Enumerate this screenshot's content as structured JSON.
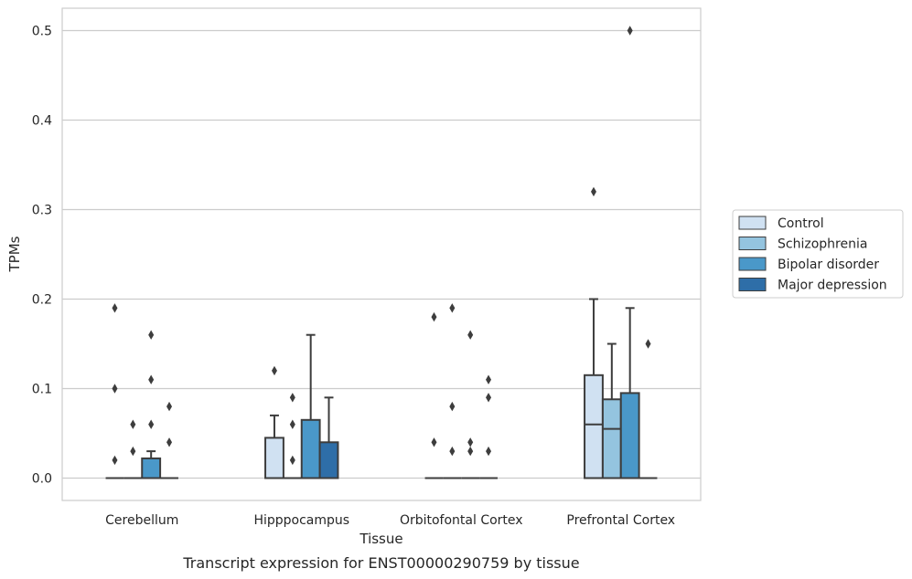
{
  "chart_data": {
    "type": "box",
    "caption": "Transcript expression for ENST00000290759 by tissue",
    "xlabel": "Tissue",
    "ylabel": "TPMs",
    "ylim": [
      -0.025,
      0.525
    ],
    "yticks": [
      0.0,
      0.1,
      0.2,
      0.3,
      0.4,
      0.5
    ],
    "ytick_labels": [
      "0.0",
      "0.1",
      "0.2",
      "0.3",
      "0.4",
      "0.5"
    ],
    "grid": true,
    "legend_position": "right",
    "categories": [
      "Cerebellum",
      "Hipppocampus",
      "Orbitofontal Cortex",
      "Prefrontal Cortex"
    ],
    "series": [
      {
        "name": "Control",
        "color": "#d0e1f2",
        "boxes": [
          {
            "q1": 0.0,
            "median": 0.0,
            "q3": 0.0,
            "whisker_low": 0.0,
            "whisker_high": 0.0,
            "outliers": [
              0.02,
              0.1,
              0.19
            ]
          },
          {
            "q1": 0.0,
            "median": 0.0,
            "q3": 0.045,
            "whisker_low": 0.0,
            "whisker_high": 0.07,
            "outliers": [
              0.12
            ]
          },
          {
            "q1": 0.0,
            "median": 0.0,
            "q3": 0.0,
            "whisker_low": 0.0,
            "whisker_high": 0.0,
            "outliers": [
              0.04,
              0.18
            ]
          },
          {
            "q1": 0.0,
            "median": 0.06,
            "q3": 0.115,
            "whisker_low": 0.0,
            "whisker_high": 0.2,
            "outliers": [
              0.32
            ]
          }
        ]
      },
      {
        "name": "Schizophrenia",
        "color": "#94c4df",
        "boxes": [
          {
            "q1": 0.0,
            "median": 0.0,
            "q3": 0.0,
            "whisker_low": 0.0,
            "whisker_high": 0.0,
            "outliers": [
              0.03,
              0.06
            ]
          },
          {
            "q1": 0.0,
            "median": 0.0,
            "q3": 0.0,
            "whisker_low": 0.0,
            "whisker_high": 0.0,
            "outliers": [
              0.02,
              0.06,
              0.09
            ]
          },
          {
            "q1": 0.0,
            "median": 0.0,
            "q3": 0.0,
            "whisker_low": 0.0,
            "whisker_high": 0.0,
            "outliers": [
              0.03,
              0.08,
              0.19
            ]
          },
          {
            "q1": 0.0,
            "median": 0.055,
            "q3": 0.088,
            "whisker_low": 0.0,
            "whisker_high": 0.15,
            "outliers": []
          }
        ]
      },
      {
        "name": "Bipolar disorder",
        "color": "#4a98c9",
        "boxes": [
          {
            "q1": 0.0,
            "median": 0.0,
            "q3": 0.022,
            "whisker_low": 0.0,
            "whisker_high": 0.03,
            "outliers": [
              0.06,
              0.11,
              0.16
            ]
          },
          {
            "q1": 0.0,
            "median": 0.0,
            "q3": 0.065,
            "whisker_low": 0.0,
            "whisker_high": 0.16,
            "outliers": []
          },
          {
            "q1": 0.0,
            "median": 0.0,
            "q3": 0.0,
            "whisker_low": 0.0,
            "whisker_high": 0.0,
            "outliers": [
              0.03,
              0.04,
              0.16
            ]
          },
          {
            "q1": 0.0,
            "median": 0.0,
            "q3": 0.095,
            "whisker_low": 0.0,
            "whisker_high": 0.19,
            "outliers": [
              0.5
            ]
          }
        ]
      },
      {
        "name": "Major depression",
        "color": "#2e6ea8",
        "boxes": [
          {
            "q1": 0.0,
            "median": 0.0,
            "q3": 0.0,
            "whisker_low": 0.0,
            "whisker_high": 0.0,
            "outliers": [
              0.04,
              0.08
            ]
          },
          {
            "q1": 0.0,
            "median": 0.0,
            "q3": 0.04,
            "whisker_low": 0.0,
            "whisker_high": 0.09,
            "outliers": []
          },
          {
            "q1": 0.0,
            "median": 0.0,
            "q3": 0.0,
            "whisker_low": 0.0,
            "whisker_high": 0.0,
            "outliers": [
              0.03,
              0.09,
              0.11
            ]
          },
          {
            "q1": 0.0,
            "median": 0.0,
            "q3": 0.0,
            "whisker_low": 0.0,
            "whisker_high": 0.0,
            "outliers": [
              0.15
            ]
          }
        ]
      }
    ]
  }
}
